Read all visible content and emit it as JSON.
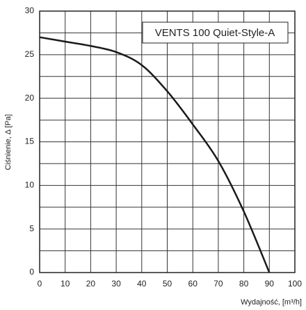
{
  "chart_data": {
    "type": "line",
    "x_label": "Wydajność, [m³/h]",
    "y_label": "Ciśnienie, Δ [Pa]",
    "x": [
      0,
      10,
      20,
      30,
      40,
      50,
      60,
      70,
      80,
      90
    ],
    "series": [
      {
        "name": "VENTS 100 Quiet-Style-A",
        "color": "#1a1a1a",
        "values": [
          27,
          26.5,
          26,
          25.3,
          23.8,
          20.8,
          17,
          12.8,
          7,
          0
        ]
      }
    ],
    "xlim": [
      0,
      100
    ],
    "xticks": [
      0,
      10,
      20,
      30,
      40,
      50,
      60,
      70,
      80,
      90,
      100
    ],
    "ylim": [
      0,
      30
    ],
    "yticks": [
      0,
      5,
      10,
      15,
      20,
      25,
      30
    ],
    "y_minor_ticks": [
      2.5,
      7.5,
      12.5,
      17.5,
      22.5,
      27.5
    ],
    "grid": true,
    "legend": "upper right"
  }
}
